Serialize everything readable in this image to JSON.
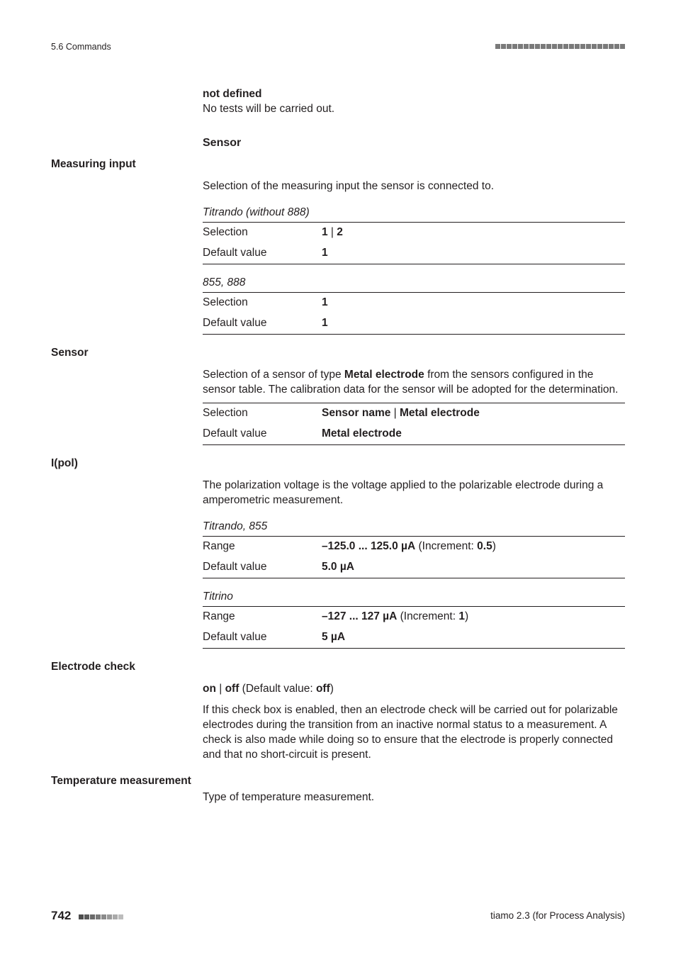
{
  "header": {
    "section_ref": "5.6 Commands"
  },
  "blocks": {
    "not_defined": {
      "title": "not defined",
      "text": "No tests will be carried out."
    },
    "sensor_heading": "Sensor",
    "measuring_input": {
      "side_label": "Measuring input",
      "intro": "Selection of the measuring input the sensor is connected to.",
      "groups": [
        {
          "caption": "Titrando (without 888)",
          "rows": [
            {
              "k": "Selection",
              "v_bold": "1",
              "v_sep": " | ",
              "v_bold2": "2"
            },
            {
              "k": "Default value",
              "v_bold": "1"
            }
          ]
        },
        {
          "caption": "855, 888",
          "rows": [
            {
              "k": "Selection",
              "v_bold": "1"
            },
            {
              "k": "Default value",
              "v_bold": "1"
            }
          ]
        }
      ]
    },
    "sensor": {
      "side_label": "Sensor",
      "intro_pre": "Selection of a sensor of type ",
      "intro_bold": "Metal electrode",
      "intro_post": " from the sensors configured in the sensor table. The calibration data for the sensor will be adopted for the determination.",
      "rows": [
        {
          "k": "Selection",
          "v_bold": "Sensor name",
          "v_sep": " | ",
          "v_bold2": "Metal electrode"
        },
        {
          "k": "Default value",
          "v_bold": "Metal electrode"
        }
      ]
    },
    "ipol": {
      "side_label": "I(pol)",
      "intro": "The polarization voltage is the voltage applied to the polarizable electrode during a amperometric measurement.",
      "groups": [
        {
          "caption": "Titrando, 855",
          "rows": [
            {
              "k": "Range",
              "v_bold": "–125.0 ... 125.0 µA",
              "v_plain_post": " (Increment: ",
              "v_bold_post": "0.5",
              "v_tail": ")"
            },
            {
              "k": "Default value",
              "v_bold": "5.0 µA"
            }
          ]
        },
        {
          "caption": "Titrino",
          "rows": [
            {
              "k": "Range",
              "v_bold": "–127 ... 127 µA",
              "v_plain_post": " (Increment: ",
              "v_bold_post": "1",
              "v_tail": ")"
            },
            {
              "k": "Default value",
              "v_bold": "5 µA"
            }
          ]
        }
      ]
    },
    "electrode_check": {
      "side_label": "Electrode check",
      "toggle_bold1": "on",
      "toggle_sep": " | ",
      "toggle_bold2": "off",
      "toggle_default_label": " (Default value: ",
      "toggle_default_value": "off",
      "toggle_tail": ")",
      "text": "If this check box is enabled, then an electrode check will be carried out for polarizable electrodes during the transition from an inactive normal status to a measurement. A check is also made while doing so to ensure that the electrode is properly connected and that no short-circuit is present."
    },
    "temp": {
      "side_label": "Temperature measurement",
      "text": "Type of temperature measurement."
    }
  },
  "footer": {
    "page": "742",
    "product": "tiamo 2.3 (for Process Analysis)",
    "square_colors": [
      "#4d4d4d",
      "#5a5a5a",
      "#6a6a6a",
      "#7a7a7a",
      "#8a8a8a",
      "#9a9a9a",
      "#aaaaaa",
      "#bcbcbc"
    ]
  }
}
